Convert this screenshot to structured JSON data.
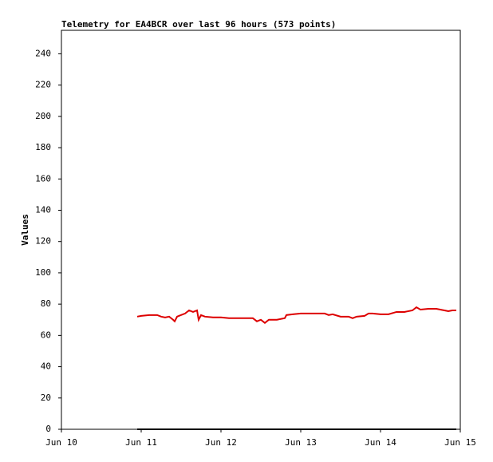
{
  "chart_data": {
    "type": "line",
    "title": "Telemetry for EA4BCR over last 96 hours (573 points)",
    "y_label": "Values",
    "xlim": [
      10,
      15
    ],
    "xticks": [
      {
        "value": 10,
        "label": "Jun 10"
      },
      {
        "value": 11,
        "label": "Jun 11"
      },
      {
        "value": 12,
        "label": "Jun 12"
      },
      {
        "value": 13,
        "label": "Jun 13"
      },
      {
        "value": 14,
        "label": "Jun 14"
      },
      {
        "value": 15,
        "label": "Jun 15"
      }
    ],
    "ylim": [
      0,
      255
    ],
    "yticks": [
      0,
      20,
      40,
      60,
      80,
      100,
      120,
      140,
      160,
      180,
      200,
      220,
      240
    ],
    "series": [
      {
        "color": "#dd0000",
        "x": [
          10.95,
          11.0,
          11.1,
          11.2,
          11.25,
          11.3,
          11.35,
          11.4,
          11.42,
          11.45,
          11.5,
          11.55,
          11.6,
          11.65,
          11.7,
          11.72,
          11.75,
          11.8,
          11.9,
          12.0,
          12.1,
          12.2,
          12.3,
          12.4,
          12.45,
          12.5,
          12.55,
          12.6,
          12.7,
          12.8,
          12.82,
          12.9,
          13.0,
          13.1,
          13.2,
          13.3,
          13.35,
          13.4,
          13.5,
          13.6,
          13.65,
          13.7,
          13.8,
          13.85,
          13.9,
          14.0,
          14.1,
          14.2,
          14.3,
          14.4,
          14.45,
          14.5,
          14.6,
          14.7,
          14.8,
          14.85,
          14.9,
          14.95
        ],
        "values": [
          72,
          72.5,
          73,
          73,
          72,
          71.5,
          72,
          70,
          69,
          72,
          73,
          74,
          76,
          75,
          76,
          70,
          73,
          72,
          71.5,
          71.5,
          71,
          71,
          71,
          71,
          69,
          70,
          68,
          70,
          70,
          71,
          73,
          73.5,
          74,
          74,
          74,
          74,
          73,
          73.5,
          72,
          72,
          71,
          72,
          72.5,
          74,
          74,
          73.5,
          73.5,
          75,
          75,
          76,
          78,
          76.5,
          77,
          77,
          76,
          75.5,
          76,
          76
        ]
      },
      {
        "color": "#000000",
        "x": [
          10.95,
          14.95
        ],
        "values": [
          0,
          0
        ]
      }
    ]
  }
}
